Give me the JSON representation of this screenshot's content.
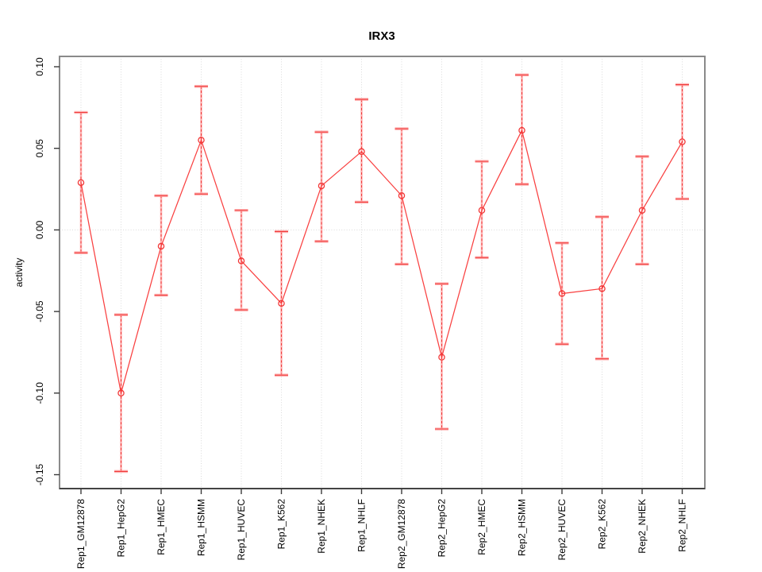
{
  "figure": {
    "title": "IRX3",
    "ylabel": "activity"
  },
  "chart_data": {
    "type": "line",
    "title": "IRX3",
    "xlabel": "",
    "ylabel": "activity",
    "ylim": [
      -0.155,
      0.105
    ],
    "yticks": [
      0.1,
      0.05,
      0.0,
      -0.05,
      -0.1,
      -0.15
    ],
    "ytick_labels": [
      "0.10",
      "0.05",
      "0.00",
      "-0.05",
      "-0.10",
      "-0.15"
    ],
    "grid": {
      "vertical_at_each_category": true,
      "horizontal_at": 0,
      "style": "dotted-lightgray"
    },
    "legend": "none",
    "categories": [
      "Rep1_GM12878",
      "Rep1_HepG2",
      "Rep1_HMEC",
      "Rep1_HSMM",
      "Rep1_HUVEC",
      "Rep1_K562",
      "Rep1_NHEK",
      "Rep1_NHLF",
      "Rep2_GM12878",
      "Rep2_HepG2",
      "Rep2_HMEC",
      "Rep2_HSMM",
      "Rep2_HUVEC",
      "Rep2_K562",
      "Rep2_NHEK",
      "Rep2_NHLF"
    ],
    "series": [
      {
        "name": "activity",
        "marker": "open-circle",
        "values": [
          0.029,
          -0.1,
          -0.01,
          0.055,
          -0.019,
          -0.045,
          0.027,
          0.048,
          0.021,
          -0.078,
          0.012,
          0.061,
          -0.039,
          -0.036,
          0.012,
          0.054
        ],
        "lower": [
          -0.014,
          -0.148,
          -0.04,
          0.022,
          -0.049,
          -0.089,
          -0.007,
          0.017,
          -0.021,
          -0.122,
          -0.017,
          0.028,
          -0.07,
          -0.079,
          -0.021,
          0.019
        ],
        "upper": [
          0.072,
          -0.052,
          0.021,
          0.088,
          0.012,
          -0.001,
          0.06,
          0.08,
          0.062,
          -0.033,
          0.042,
          0.095,
          -0.008,
          0.008,
          0.045,
          0.089
        ]
      }
    ],
    "colors": {
      "line": "#f94040",
      "marker": "#f23636",
      "error_core": "#ef3b3b",
      "error_band": "#ffa0a0",
      "grid": "#d9d9d9",
      "box": "#8a8a8a",
      "axis_line": "#1a1a1a",
      "tick": "#3a3a3a",
      "text": "#000000"
    }
  }
}
